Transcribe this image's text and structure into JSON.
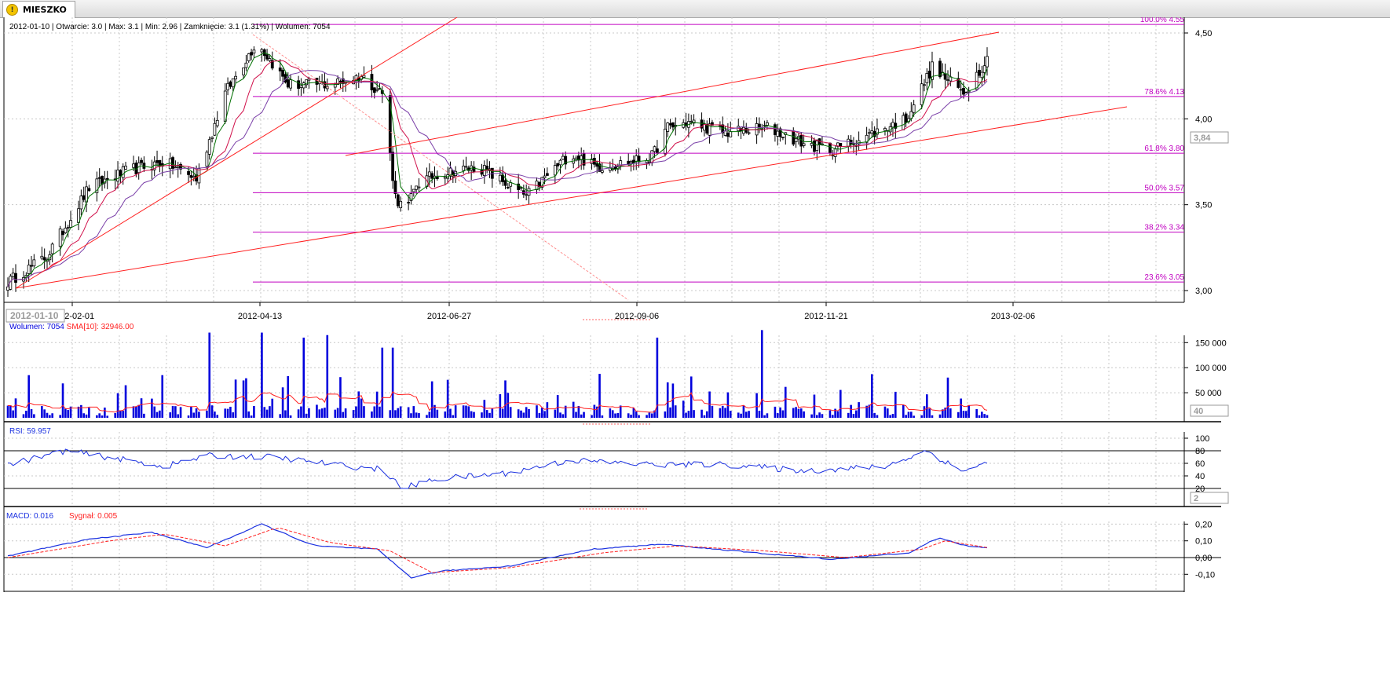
{
  "window": {
    "tab_label": "MIESZKO",
    "tab_icon": "warning-icon"
  },
  "colors": {
    "candles": "#000000",
    "ma_fast": "#007000",
    "ma_mid": "#d0104a",
    "ma_slow": "#7a3fa8",
    "trend": "#ff2020",
    "fib": "#c000c0",
    "volume": "#0000dd",
    "volume_sma": "#ff2020",
    "rsi": "#1a30e0",
    "macd": "#1a30e0",
    "signal": "#ff2020"
  },
  "info_line": "2012-01-10 | Otwarcie: 3.0 | Max: 3.1 | Min: 2.96 | Zamknięcie: 3.1 (1.31%)  | Wolumen: 7054",
  "cursor_date_label": "2012-01-10",
  "date_labels": [
    "2012-02-01",
    "2012-04-13",
    "2012-06-27",
    "2012-09-06",
    "2012-11-21",
    "2013-02-06"
  ],
  "price_tick_labels": [
    "4,50",
    "4,00",
    "3,50",
    "3,00"
  ],
  "price_marker": "3,84",
  "volume_header": {
    "vol_label": "Wolumen:",
    "vol_value": "7054",
    "sma_label": "SMA[10]:",
    "sma_value": "32946.00"
  },
  "volume_tick_labels": [
    "150 000",
    "100 000",
    "50 000"
  ],
  "volume_marker": "40",
  "rsi_header": "RSI: 59.957",
  "rsi_tick_labels": [
    "100",
    "80",
    "60",
    "40",
    "20"
  ],
  "rsi_marker": "2",
  "macd_header": {
    "macd_label": "MACD: 0.016",
    "signal_label": "Sygnał: 0.005"
  },
  "macd_tick_labels": [
    "0,20",
    "0,10",
    "0,00",
    "-0,10"
  ],
  "chart_data": {
    "type": "line",
    "description_series": "daily OHLC candlesticks with 3 moving averages, Fibonacci retracement, trend lines, volume, RSI and MACD",
    "x_range": [
      "2012-01-10",
      "2013-01-18"
    ],
    "price_range": [
      2.95,
      4.62
    ],
    "fibonacci_levels": [
      {
        "label": "100.0% 4.55",
        "value": 4.55
      },
      {
        "label": "78.6% 4.13",
        "value": 4.13
      },
      {
        "label": "61.8% 3.80",
        "value": 3.8
      },
      {
        "label": "50.0% 3.57",
        "value": 3.57
      },
      {
        "label": "38.2% 3.34",
        "value": 3.34
      },
      {
        "label": "23.6% 3.05",
        "value": 3.05
      }
    ],
    "close_anchors": [
      [
        "2012-01-10",
        3.05
      ],
      [
        "2012-01-25",
        3.2
      ],
      [
        "2012-02-10",
        3.6
      ],
      [
        "2012-02-25",
        3.7
      ],
      [
        "2012-03-10",
        3.75
      ],
      [
        "2012-03-22",
        3.65
      ],
      [
        "2012-04-02",
        4.15
      ],
      [
        "2012-04-14",
        4.45
      ],
      [
        "2012-04-26",
        4.2
      ],
      [
        "2012-05-12",
        4.2
      ],
      [
        "2012-05-24",
        4.25
      ],
      [
        "2012-06-01",
        4.15
      ],
      [
        "2012-06-06",
        3.55
      ],
      [
        "2012-06-10",
        3.45
      ],
      [
        "2012-06-14",
        3.62
      ],
      [
        "2012-06-22",
        3.68
      ],
      [
        "2012-07-08",
        3.72
      ],
      [
        "2012-07-26",
        3.55
      ],
      [
        "2012-08-05",
        3.7
      ],
      [
        "2012-08-12",
        3.8
      ],
      [
        "2012-08-22",
        3.72
      ],
      [
        "2012-09-04",
        3.75
      ],
      [
        "2012-09-12",
        3.78
      ],
      [
        "2012-09-18",
        3.95
      ],
      [
        "2012-09-26",
        3.98
      ],
      [
        "2012-10-10",
        3.92
      ],
      [
        "2012-10-26",
        3.95
      ],
      [
        "2012-11-10",
        3.85
      ],
      [
        "2012-11-20",
        3.82
      ],
      [
        "2012-12-06",
        3.92
      ],
      [
        "2012-12-18",
        4.0
      ],
      [
        "2012-12-28",
        4.3
      ],
      [
        "2013-01-05",
        4.2
      ],
      [
        "2013-01-09",
        4.15
      ],
      [
        "2013-01-18",
        4.35
      ]
    ],
    "volume_range": [
      0,
      185000
    ],
    "volume_spikes": [
      [
        "2012-03-27",
        170000
      ],
      [
        "2012-04-06",
        170000
      ],
      [
        "2012-04-16",
        170000
      ],
      [
        "2012-05-02",
        160000
      ],
      [
        "2012-05-12",
        165000
      ],
      [
        "2012-06-02",
        140000
      ],
      [
        "2012-06-05",
        140000
      ],
      [
        "2012-07-18",
        135000
      ],
      [
        "2012-09-14",
        160000
      ],
      [
        "2012-10-24",
        175000
      ],
      [
        "2012-12-26",
        105000
      ]
    ],
    "rsi_range": [
      0,
      100
    ],
    "rsi_levels": [
      80,
      20
    ],
    "rsi_anchors": [
      [
        "2012-01-10",
        58
      ],
      [
        "2012-02-01",
        80
      ],
      [
        "2012-02-20",
        68
      ],
      [
        "2012-03-10",
        55
      ],
      [
        "2012-03-26",
        72
      ],
      [
        "2012-04-20",
        70
      ],
      [
        "2012-05-20",
        55
      ],
      [
        "2012-06-02",
        50
      ],
      [
        "2012-06-08",
        20
      ],
      [
        "2012-06-22",
        35
      ],
      [
        "2012-07-20",
        45
      ],
      [
        "2012-08-12",
        65
      ],
      [
        "2012-09-10",
        58
      ],
      [
        "2012-10-10",
        58
      ],
      [
        "2012-11-10",
        48
      ],
      [
        "2012-12-10",
        55
      ],
      [
        "2012-12-26",
        80
      ],
      [
        "2013-01-08",
        48
      ],
      [
        "2013-01-18",
        60
      ]
    ],
    "macd_range": [
      -0.15,
      0.23
    ],
    "macd_anchors": [
      [
        "2012-01-10",
        0.01
      ],
      [
        "2012-02-10",
        0.11
      ],
      [
        "2012-03-05",
        0.15
      ],
      [
        "2012-03-26",
        0.06
      ],
      [
        "2012-04-16",
        0.2
      ],
      [
        "2012-05-06",
        0.07
      ],
      [
        "2012-05-30",
        0.05
      ],
      [
        "2012-06-12",
        -0.12
      ],
      [
        "2012-06-24",
        -0.08
      ],
      [
        "2012-07-20",
        -0.05
      ],
      [
        "2012-08-20",
        0.05
      ],
      [
        "2012-09-16",
        0.08
      ],
      [
        "2012-10-20",
        0.03
      ],
      [
        "2012-11-20",
        -0.01
      ],
      [
        "2012-12-20",
        0.03
      ],
      [
        "2012-12-30",
        0.12
      ],
      [
        "2013-01-10",
        0.07
      ],
      [
        "2013-01-18",
        0.06
      ]
    ],
    "signal_anchors": [
      [
        "2012-01-10",
        0.0
      ],
      [
        "2012-02-18",
        0.1
      ],
      [
        "2012-03-10",
        0.14
      ],
      [
        "2012-04-02",
        0.07
      ],
      [
        "2012-04-22",
        0.18
      ],
      [
        "2012-05-12",
        0.09
      ],
      [
        "2012-06-04",
        0.04
      ],
      [
        "2012-06-20",
        -0.09
      ],
      [
        "2012-07-20",
        -0.06
      ],
      [
        "2012-08-25",
        0.03
      ],
      [
        "2012-09-22",
        0.07
      ],
      [
        "2012-10-25",
        0.04
      ],
      [
        "2012-11-25",
        0.0
      ],
      [
        "2012-12-24",
        0.05
      ],
      [
        "2013-01-02",
        0.1
      ],
      [
        "2013-01-18",
        0.06
      ]
    ]
  }
}
